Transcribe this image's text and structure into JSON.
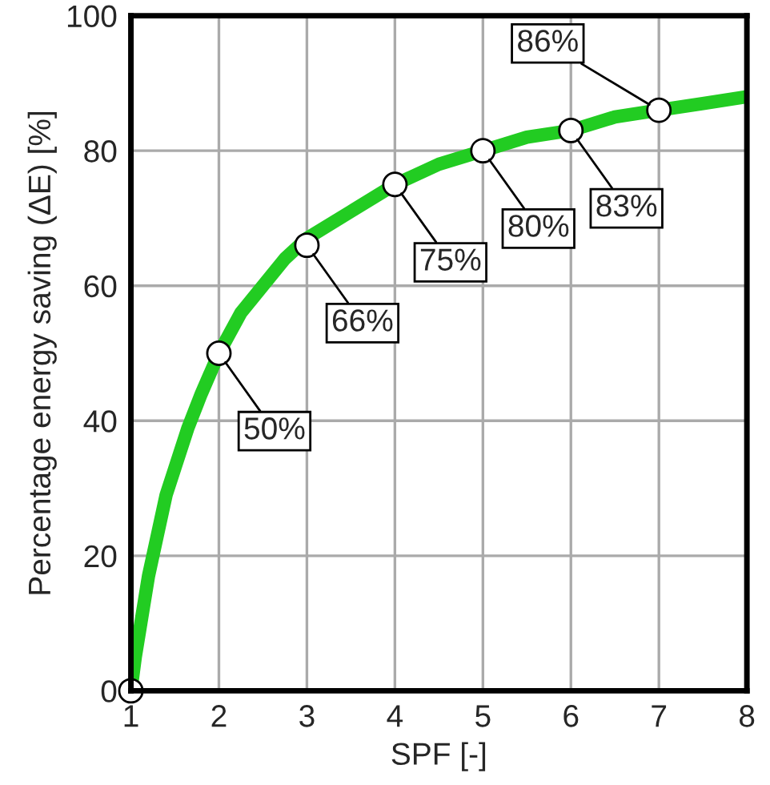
{
  "chart_data": {
    "type": "line",
    "xlabel": "SPF [-]",
    "ylabel": "Percentage energy saving (ΔE) [%]",
    "xlim": [
      1,
      8
    ],
    "ylim": [
      0,
      100
    ],
    "xticks": [
      1,
      2,
      3,
      4,
      5,
      6,
      7,
      8
    ],
    "yticks": [
      0,
      20,
      40,
      60,
      80,
      100
    ],
    "grid": true,
    "legend": false,
    "series": [
      {
        "color": "#22cc22",
        "marker": "none",
        "line_style": "solid",
        "x": [
          1,
          1.05,
          1.1,
          1.2,
          1.3,
          1.4,
          1.5,
          1.65,
          1.8,
          2,
          2.25,
          2.5,
          2.75,
          3,
          3.5,
          4,
          4.5,
          5,
          5.5,
          6,
          6.5,
          7,
          7.5,
          8
        ],
        "values": [
          0,
          5,
          9,
          17,
          23,
          29,
          33,
          39,
          44,
          50,
          56,
          60,
          64,
          67,
          71,
          75,
          78,
          80,
          82,
          83,
          85,
          86,
          87,
          88
        ]
      },
      {
        "type": "scatter",
        "color": "#ffffff",
        "marker": "circle",
        "x": [
          1,
          2,
          3,
          4,
          5,
          6,
          7
        ],
        "values": [
          0,
          50,
          66,
          75,
          80,
          83,
          86
        ],
        "value_labels": [
          null,
          "50%",
          "66%",
          "75%",
          "80%",
          "83%",
          "86%"
        ]
      }
    ]
  }
}
